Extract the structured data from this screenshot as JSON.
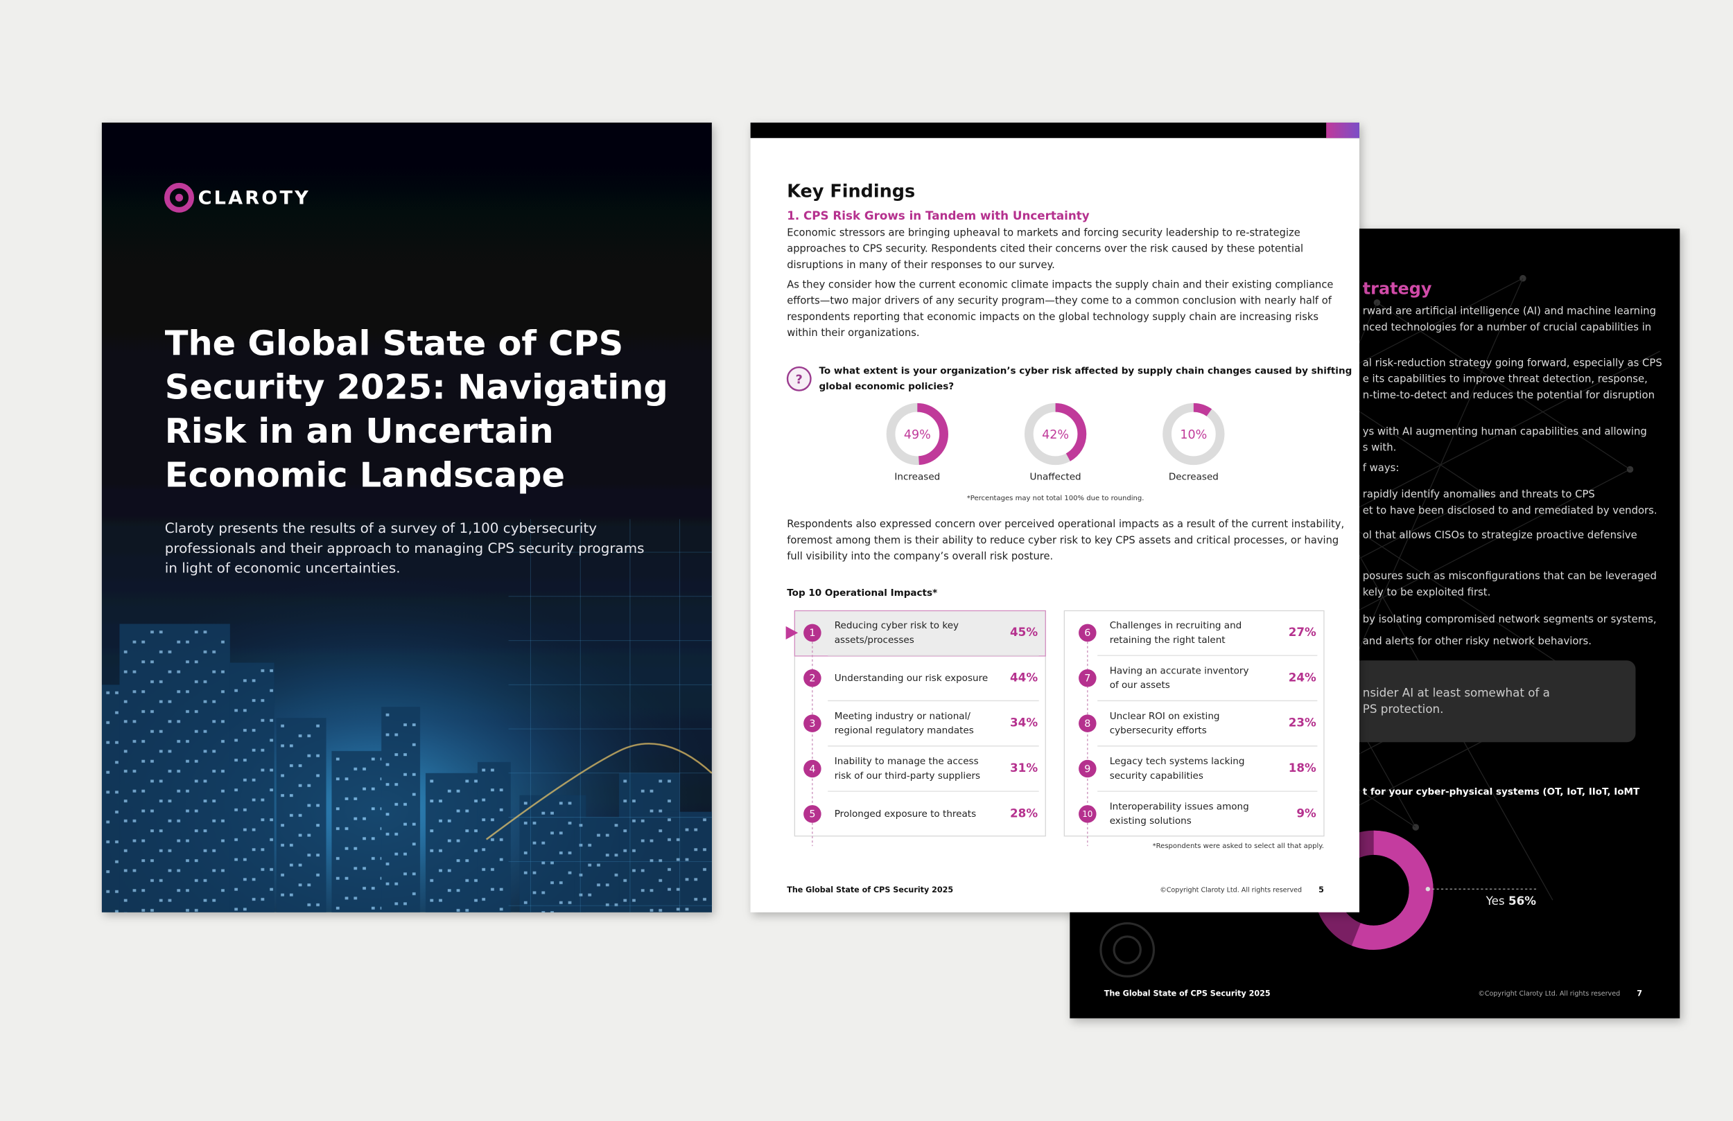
{
  "cover": {
    "logo": "CLAROTY",
    "title": [
      "The Global State of CPS",
      "Security 2025: Navigating",
      "Risk in an Uncertain",
      "Economic Landscape"
    ],
    "subtitle": [
      "Claroty presents the results of a survey of 1,100 cybersecurity",
      "professionals and their approach to managing CPS security programs",
      "in light of economic uncertainties."
    ]
  },
  "page5": {
    "heading": "Key Findings",
    "subheading": "1. CPS Risk Grows in Tandem with Uncertainty",
    "paragraphs": [
      [
        "Economic stressors are bringing upheaval to markets and forcing security leadership to re-strategize",
        "approaches to CPS security. Respondents cited their concerns over the risk caused by these potential",
        "disruptions in many of their responses to our survey."
      ],
      [
        "As they consider how the current economic climate impacts the supply chain and their existing compliance",
        "efforts—two major drivers of any security program—they come to a common conclusion with nearly half of",
        "respondents reporting that economic impacts on the global technology supply chain are increasing risks",
        "within their organizations."
      ]
    ],
    "question": {
      "icon": "?",
      "lines": [
        "To what extent is your organization’s cyber risk affected by supply chain changes caused by shifting",
        "global economic policies?"
      ]
    },
    "donuts": [
      {
        "value": 49,
        "label": "49%",
        "name": "Increased"
      },
      {
        "value": 42,
        "label": "42%",
        "name": "Unaffected"
      },
      {
        "value": 10,
        "label": "10%",
        "name": "Decreased"
      }
    ],
    "donut_note": "*Percentages may not total 100% due to rounding.",
    "paragraph3": [
      "Respondents also expressed concern over perceived operational impacts as a result of the current instability,",
      "foremost among them is their ability to reduce cyber risk to key CPS assets and critical processes, or having",
      "full visibility into the company’s overall risk posture."
    ],
    "impacts_title": "Top 10 Operational Impacts*",
    "impacts": [
      {
        "rank": "1",
        "label": [
          "Reducing cyber risk to key",
          "assets/processes"
        ],
        "value": "45%"
      },
      {
        "rank": "2",
        "label": [
          "Understanding our risk exposure"
        ],
        "value": "44%"
      },
      {
        "rank": "3",
        "label": [
          "Meeting industry or national/",
          "regional regulatory mandates"
        ],
        "value": "34%"
      },
      {
        "rank": "4",
        "label": [
          "Inability to manage the access",
          "risk of our third-party suppliers"
        ],
        "value": "31%"
      },
      {
        "rank": "5",
        "label": [
          "Prolonged exposure to threats"
        ],
        "value": "28%"
      },
      {
        "rank": "6",
        "label": [
          "Challenges in recruiting and",
          "retaining the right talent"
        ],
        "value": "27%"
      },
      {
        "rank": "7",
        "label": [
          "Having an accurate inventory",
          "of our assets"
        ],
        "value": "24%"
      },
      {
        "rank": "8",
        "label": [
          "Unclear ROI on existing",
          "cybersecurity efforts"
        ],
        "value": "23%"
      },
      {
        "rank": "9",
        "label": [
          "Legacy tech systems lacking",
          "security capabilities"
        ],
        "value": "18%"
      },
      {
        "rank": "10",
        "label": [
          "Interoperability issues among",
          "existing solutions"
        ],
        "value": "9%"
      }
    ],
    "impacts_note": "*Respondents were asked to select all that apply.",
    "footer": {
      "title": "The Global State of CPS Security 2025",
      "copyright": "©Copyright Claroty Ltd. All rights reserved",
      "page": "5"
    }
  },
  "page7": {
    "heading": "trategy",
    "paragraphs": [
      [
        "rward are artificial intelligence (AI) and machine learning",
        "nced technologies for a number of crucial capabilities in"
      ],
      [
        "al risk-reduction strategy going forward, especially as CPS",
        "e its capabilities to improve threat detection, response,",
        "n-time-to-detect and reduces the potential for disruption"
      ],
      [
        "ys with AI augmenting human capabilities and allowing",
        "s with."
      ],
      [
        "f ways:"
      ],
      [
        "rapidly identify anomalies and threats to CPS",
        "et to have been disclosed to and remediated by vendors."
      ],
      [
        "ol that allows CISOs to strategize proactive defensive"
      ],
      [
        "posures such as misconfigurations that can be leveraged",
        "kely to be exploited first."
      ],
      [
        "by isolating compromised network segments or systems,"
      ],
      [
        "and alerts for other risky network behaviors."
      ]
    ],
    "callout": [
      "nsider AI at least somewhat of a",
      "PS protection."
    ],
    "question": "t for your cyber-physical systems (OT, IoT, IIoT, IoMT",
    "donut": {
      "label": "Yes",
      "value": 56,
      "value_label": "56%"
    },
    "footer": {
      "title": "The Global State of CPS Security 2025",
      "copyright": "©Copyright Claroty Ltd. All rights reserved",
      "page": "7"
    }
  }
}
